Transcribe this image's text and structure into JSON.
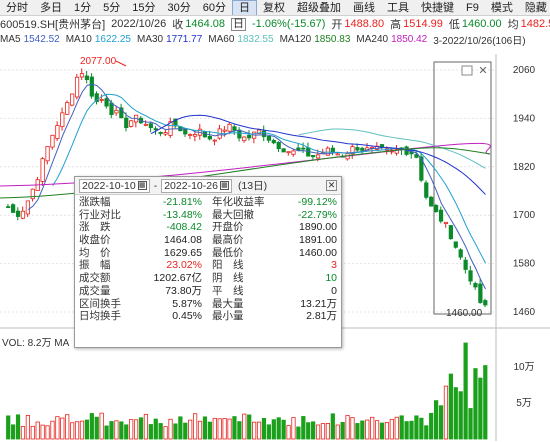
{
  "toolbar": {
    "items": [
      "分时",
      "多日",
      "1分",
      "5分",
      "15分",
      "30分",
      "60分",
      "日",
      "复权",
      "超级叠加",
      "画线",
      "工具",
      "快捷键",
      "F9",
      "模式",
      "隐藏"
    ],
    "active_index": 7
  },
  "info": {
    "code": "600519.SH[贵州茅台]",
    "date": "2022/10/26",
    "close_label": "收",
    "close": "1464.08",
    "freq": "日",
    "change": "-1.06%(-15.67)",
    "open_label": "开",
    "open": "1488.80",
    "high_label": "高",
    "high": "1514.99",
    "low_label": "低",
    "low": "1460.00",
    "avg_label": "均",
    "avg": "1482.5"
  },
  "ma": {
    "items": [
      {
        "label": "MA5",
        "value": "1542.52",
        "color": "#4060c0"
      },
      {
        "label": "MA10",
        "value": "1622.25",
        "color": "#20a0d0"
      },
      {
        "label": "MA30",
        "value": "1771.77",
        "color": "#2233cc"
      },
      {
        "label": "MA60",
        "value": "1832.55",
        "color": "#60c0c0"
      },
      {
        "label": "MA120",
        "value": "1850.83",
        "color": "#208020"
      },
      {
        "label": "MA240",
        "value": "1850.42",
        "color": "#c020c0"
      }
    ],
    "range_text": "3-2022/10/26(106日)"
  },
  "price_axis": [
    "2060",
    "1940",
    "1820",
    "1700",
    "1580",
    "1460"
  ],
  "high_marker": "2077.00",
  "low_marker": "1460.00",
  "volume": {
    "label": "VOL: 8.2万",
    "ma_label": "MA",
    "axis": [
      "10万",
      "5万"
    ]
  },
  "popup": {
    "date_from": "2022-10-10",
    "date_to": "2022-10-26",
    "days": "(13日)",
    "rows": [
      [
        {
          "k": "涨跌幅",
          "v": "-21.81%",
          "c": "green"
        },
        {
          "k": "年化收益率",
          "v": "-99.12%",
          "c": "green"
        }
      ],
      [
        {
          "k": "行业对比",
          "v": "-13.48%",
          "c": "green"
        },
        {
          "k": "最大回撤",
          "v": "-22.79%",
          "c": "green"
        }
      ],
      [
        {
          "k": "涨　跌",
          "v": "-408.42",
          "c": "green"
        },
        {
          "k": "开盘价",
          "v": "1890.00",
          "c": "black"
        }
      ],
      [
        {
          "k": "收盘价",
          "v": "1464.08",
          "c": "black"
        },
        {
          "k": "最高价",
          "v": "1891.00",
          "c": "black"
        }
      ],
      [
        {
          "k": "均　价",
          "v": "1629.65",
          "c": "black"
        },
        {
          "k": "最低价",
          "v": "1460.00",
          "c": "black"
        }
      ],
      [
        {
          "k": "振　幅",
          "v": "23.02%",
          "c": "red"
        },
        {
          "k": "阳　线",
          "v": "3",
          "c": "red"
        }
      ],
      [
        {
          "k": "成交额",
          "v": "1202.67亿",
          "c": "black"
        },
        {
          "k": "阴　线",
          "v": "10",
          "c": "green"
        }
      ],
      [
        {
          "k": "成交量",
          "v": "73.80万",
          "c": "black"
        },
        {
          "k": "平　线",
          "v": "0",
          "c": "black"
        }
      ],
      [
        {
          "k": "区间换手",
          "v": "5.87%",
          "c": "black"
        },
        {
          "k": "最大量",
          "v": "13.21万",
          "c": "black"
        }
      ],
      [
        {
          "k": "日均换手",
          "v": "0.45%",
          "c": "black"
        },
        {
          "k": "最小量",
          "v": "2.81万",
          "c": "black"
        }
      ]
    ]
  },
  "colors": {
    "up": "#e8231f",
    "down": "#0a8a2a",
    "volume_down": "#1aa01a",
    "volume_up": "#e8231f"
  }
}
